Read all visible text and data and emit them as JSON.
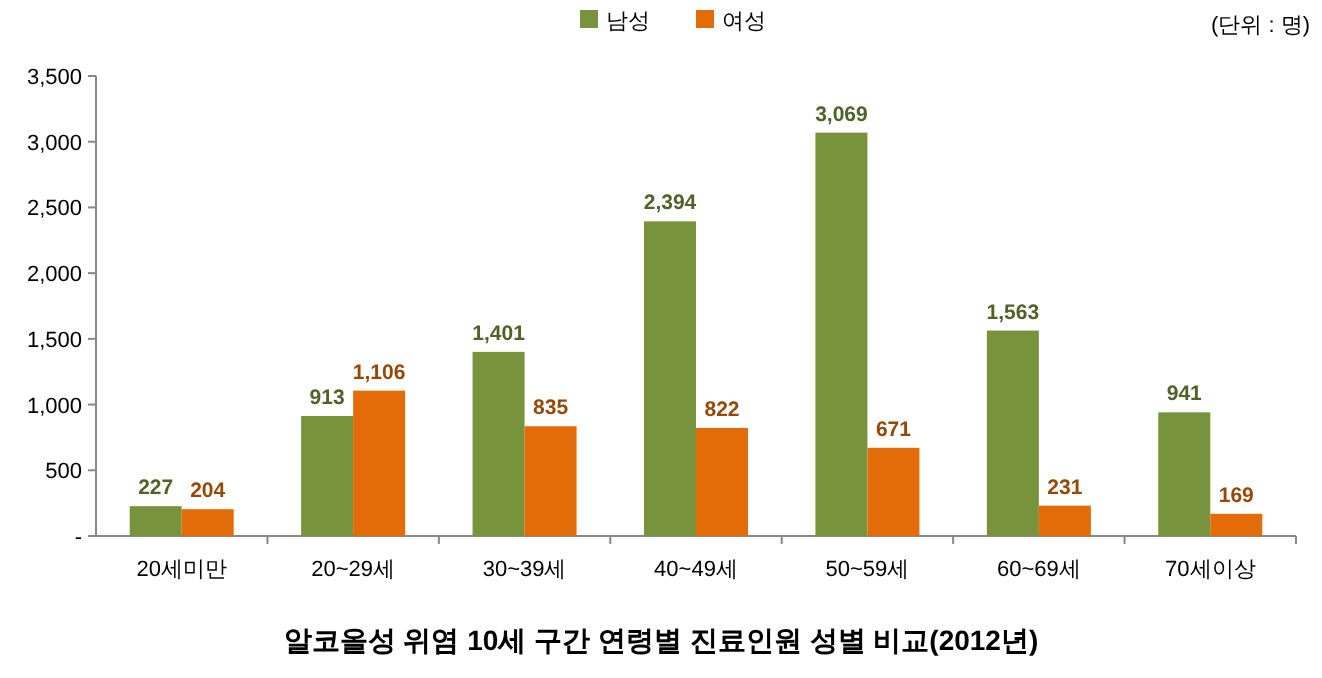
{
  "chart_data": {
    "type": "bar",
    "title": "알코올성 위염 10세 구간 연령별 진료인원 성별 비교(2012년)",
    "annotations": [
      "(단위 : 명)"
    ],
    "categories": [
      "20세미만",
      "20~29세",
      "30~39세",
      "40~49세",
      "50~59세",
      "60~69세",
      "70세이상"
    ],
    "series": [
      {
        "name": "남성",
        "color": "#77933c",
        "values": [
          227,
          913,
          1401,
          2394,
          3069,
          1563,
          941
        ],
        "value_labels": [
          "227",
          "913",
          "1,401",
          "2,394",
          "3,069",
          "1,563",
          "941"
        ]
      },
      {
        "name": "여성",
        "color": "#e36c09",
        "values": [
          204,
          1106,
          835,
          822,
          671,
          231,
          169
        ],
        "value_labels": [
          "204",
          "1,106",
          "835",
          "822",
          "671",
          "231",
          "169"
        ]
      }
    ],
    "ylim": [
      0,
      3500
    ],
    "yticks": [
      {
        "value": 0,
        "label": "-"
      },
      {
        "value": 500,
        "label": "500"
      },
      {
        "value": 1000,
        "label": "1,000"
      },
      {
        "value": 1500,
        "label": "1,500"
      },
      {
        "value": 2000,
        "label": "2,000"
      },
      {
        "value": 2500,
        "label": "2,500"
      },
      {
        "value": 3000,
        "label": "3,000"
      },
      {
        "value": 3500,
        "label": "3,500"
      }
    ],
    "legend": "top",
    "grid": false
  }
}
